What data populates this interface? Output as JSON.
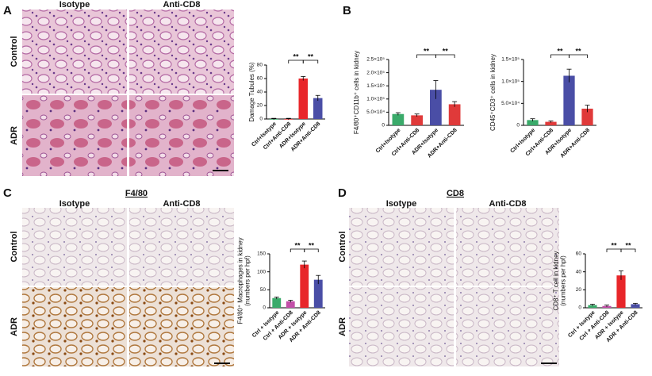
{
  "figure": {
    "panels": [
      {
        "letter": "A",
        "columns": [
          "Isotype",
          "Anti-CD8"
        ],
        "rows": [
          "Control",
          "ADR"
        ]
      },
      {
        "letter": "B"
      },
      {
        "letter": "C",
        "stain": "F4/80",
        "columns": [
          "Isotype",
          "Anti-CD8"
        ],
        "rows": [
          "Control",
          "ADR"
        ]
      },
      {
        "letter": "D",
        "stain": "CD8",
        "columns": [
          "Isotype",
          "Anti-CD8"
        ],
        "rows": [
          "Control",
          "ADR"
        ]
      }
    ]
  },
  "chart_data": [
    {
      "type": "bar",
      "y_label": [
        "Damage Tubules (%)"
      ],
      "categories": [
        "Ctrl+Isotype",
        "Ctrl+Anti-CD8",
        "ADR+Isotype",
        "ADR+Anti-CD8"
      ],
      "values": [
        0,
        0,
        60,
        31
      ],
      "errors": [
        1,
        1,
        3,
        4
      ],
      "colors": [
        "#3aaa6a",
        "#e03a3a",
        "#e8262a",
        "#4a4ea6"
      ],
      "ylim": [
        0,
        80
      ],
      "yticks": [
        0,
        20,
        40,
        60,
        80
      ],
      "annotations": [
        "**",
        "**"
      ]
    },
    {
      "type": "bar",
      "y_label": [
        "F4/80⁺CD11b⁺ cells in kidney"
      ],
      "categories": [
        "Ctrl+Isotype",
        "Ctrl+Anti-CD8",
        "ADR+Isotype",
        "ADR+Anti-CD8"
      ],
      "values": [
        43000,
        38000,
        135000,
        80000
      ],
      "errors": [
        5000,
        5000,
        35000,
        10000
      ],
      "colors": [
        "#3aaa6a",
        "#e03a3a",
        "#4a4ea6",
        "#e03a3a"
      ],
      "ylim": [
        0,
        250000
      ],
      "yticks": [
        0,
        {
          "value": 50000,
          "label": "5.0×10⁴"
        },
        {
          "value": 100000,
          "label": "1.0×10⁵"
        },
        {
          "value": 150000,
          "label": "1.5×10⁵"
        },
        {
          "value": 200000,
          "label": "2.0×10⁵"
        },
        {
          "value": 250000,
          "label": "2.5×10⁵"
        }
      ],
      "annotations": [
        "**",
        "**"
      ]
    },
    {
      "type": "bar",
      "y_label": [
        "CD45⁺CD3⁺ cells in kidney"
      ],
      "categories": [
        "Ctrl+Isotype",
        "Ctrl+Anti-CD8",
        "ADR+Isotype",
        "ADR+Anti-CD8"
      ],
      "values": [
        12000,
        8000,
        113000,
        38000
      ],
      "errors": [
        3000,
        2000,
        15000,
        8000
      ],
      "colors": [
        "#3aaa6a",
        "#e03a3a",
        "#4a4ea6",
        "#e03a3a"
      ],
      "ylim": [
        0,
        150000
      ],
      "yticks": [
        0,
        {
          "value": 50000,
          "label": "5.0×10⁴"
        },
        {
          "value": 100000,
          "label": "1.0×10⁵"
        },
        {
          "value": 150000,
          "label": "1.5×10⁵"
        }
      ],
      "annotations": [
        "**",
        "**"
      ]
    },
    {
      "type": "bar",
      "y_label": [
        "F4/80⁺ Macrophages in kidney",
        "(numbers per hpf)"
      ],
      "categories": [
        "Ctrl + Isotype",
        "Ctrl + Anti-CD8",
        "ADR + Isotype",
        "ADR + Anti-CD8"
      ],
      "values": [
        27,
        18,
        120,
        78
      ],
      "errors": [
        3,
        3,
        10,
        12
      ],
      "colors": [
        "#3aaa6a",
        "#c24fa8",
        "#e8262a",
        "#4a4ea6"
      ],
      "ylim": [
        0,
        150
      ],
      "yticks": [
        0,
        50,
        100,
        150
      ],
      "annotations": [
        "**",
        "**"
      ]
    },
    {
      "type": "bar",
      "y_label": [
        "CD8⁺ T cell in kidney",
        "(numbers per hpf)"
      ],
      "categories": [
        "Ctrl + Isotype",
        "Ctrl + Anti-CD8",
        "ADR + Isotype",
        "ADR + Anti-CD8"
      ],
      "values": [
        3,
        2,
        36,
        4
      ],
      "errors": [
        1,
        1,
        5,
        1
      ],
      "colors": [
        "#3aaa6a",
        "#c24fa8",
        "#e8262a",
        "#4a4ea6"
      ],
      "ylim": [
        0,
        60
      ],
      "yticks": [
        0,
        20,
        40,
        60
      ],
      "annotations": [
        "**",
        "**"
      ]
    }
  ]
}
